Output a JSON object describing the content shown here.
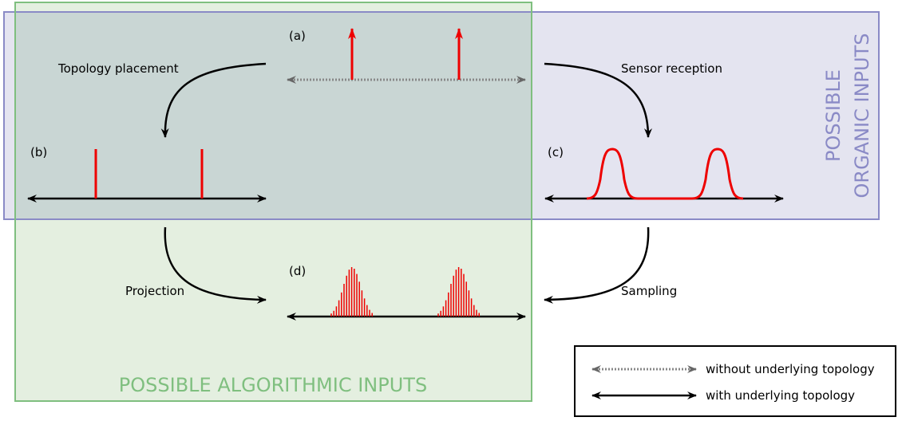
{
  "panels": {
    "a": "(a)",
    "b": "(b)",
    "c": "(c)",
    "d": "(d)"
  },
  "arrows": {
    "topology_placement": "Topology placement",
    "sensor_reception": "Sensor reception",
    "projection": "Projection",
    "sampling": "Sampling"
  },
  "regions": {
    "organic_line1": "POSSIBLE",
    "organic_line2": "ORGANIC INPUTS",
    "algorithmic": "POSSIBLE ALGORITHMIC INPUTS"
  },
  "legend": {
    "without_topology": "without underlying topology",
    "with_topology": "with underlying topology"
  },
  "colors": {
    "organic_region": "#e4e4f0",
    "organic_border": "#8a8ac6",
    "algorithmic_region": "#e4efe0",
    "algorithmic_border": "#7fbf7f",
    "overlap_region": "#c9d6d4",
    "signal": "#ee0000",
    "dotted_axis": "#888888"
  }
}
